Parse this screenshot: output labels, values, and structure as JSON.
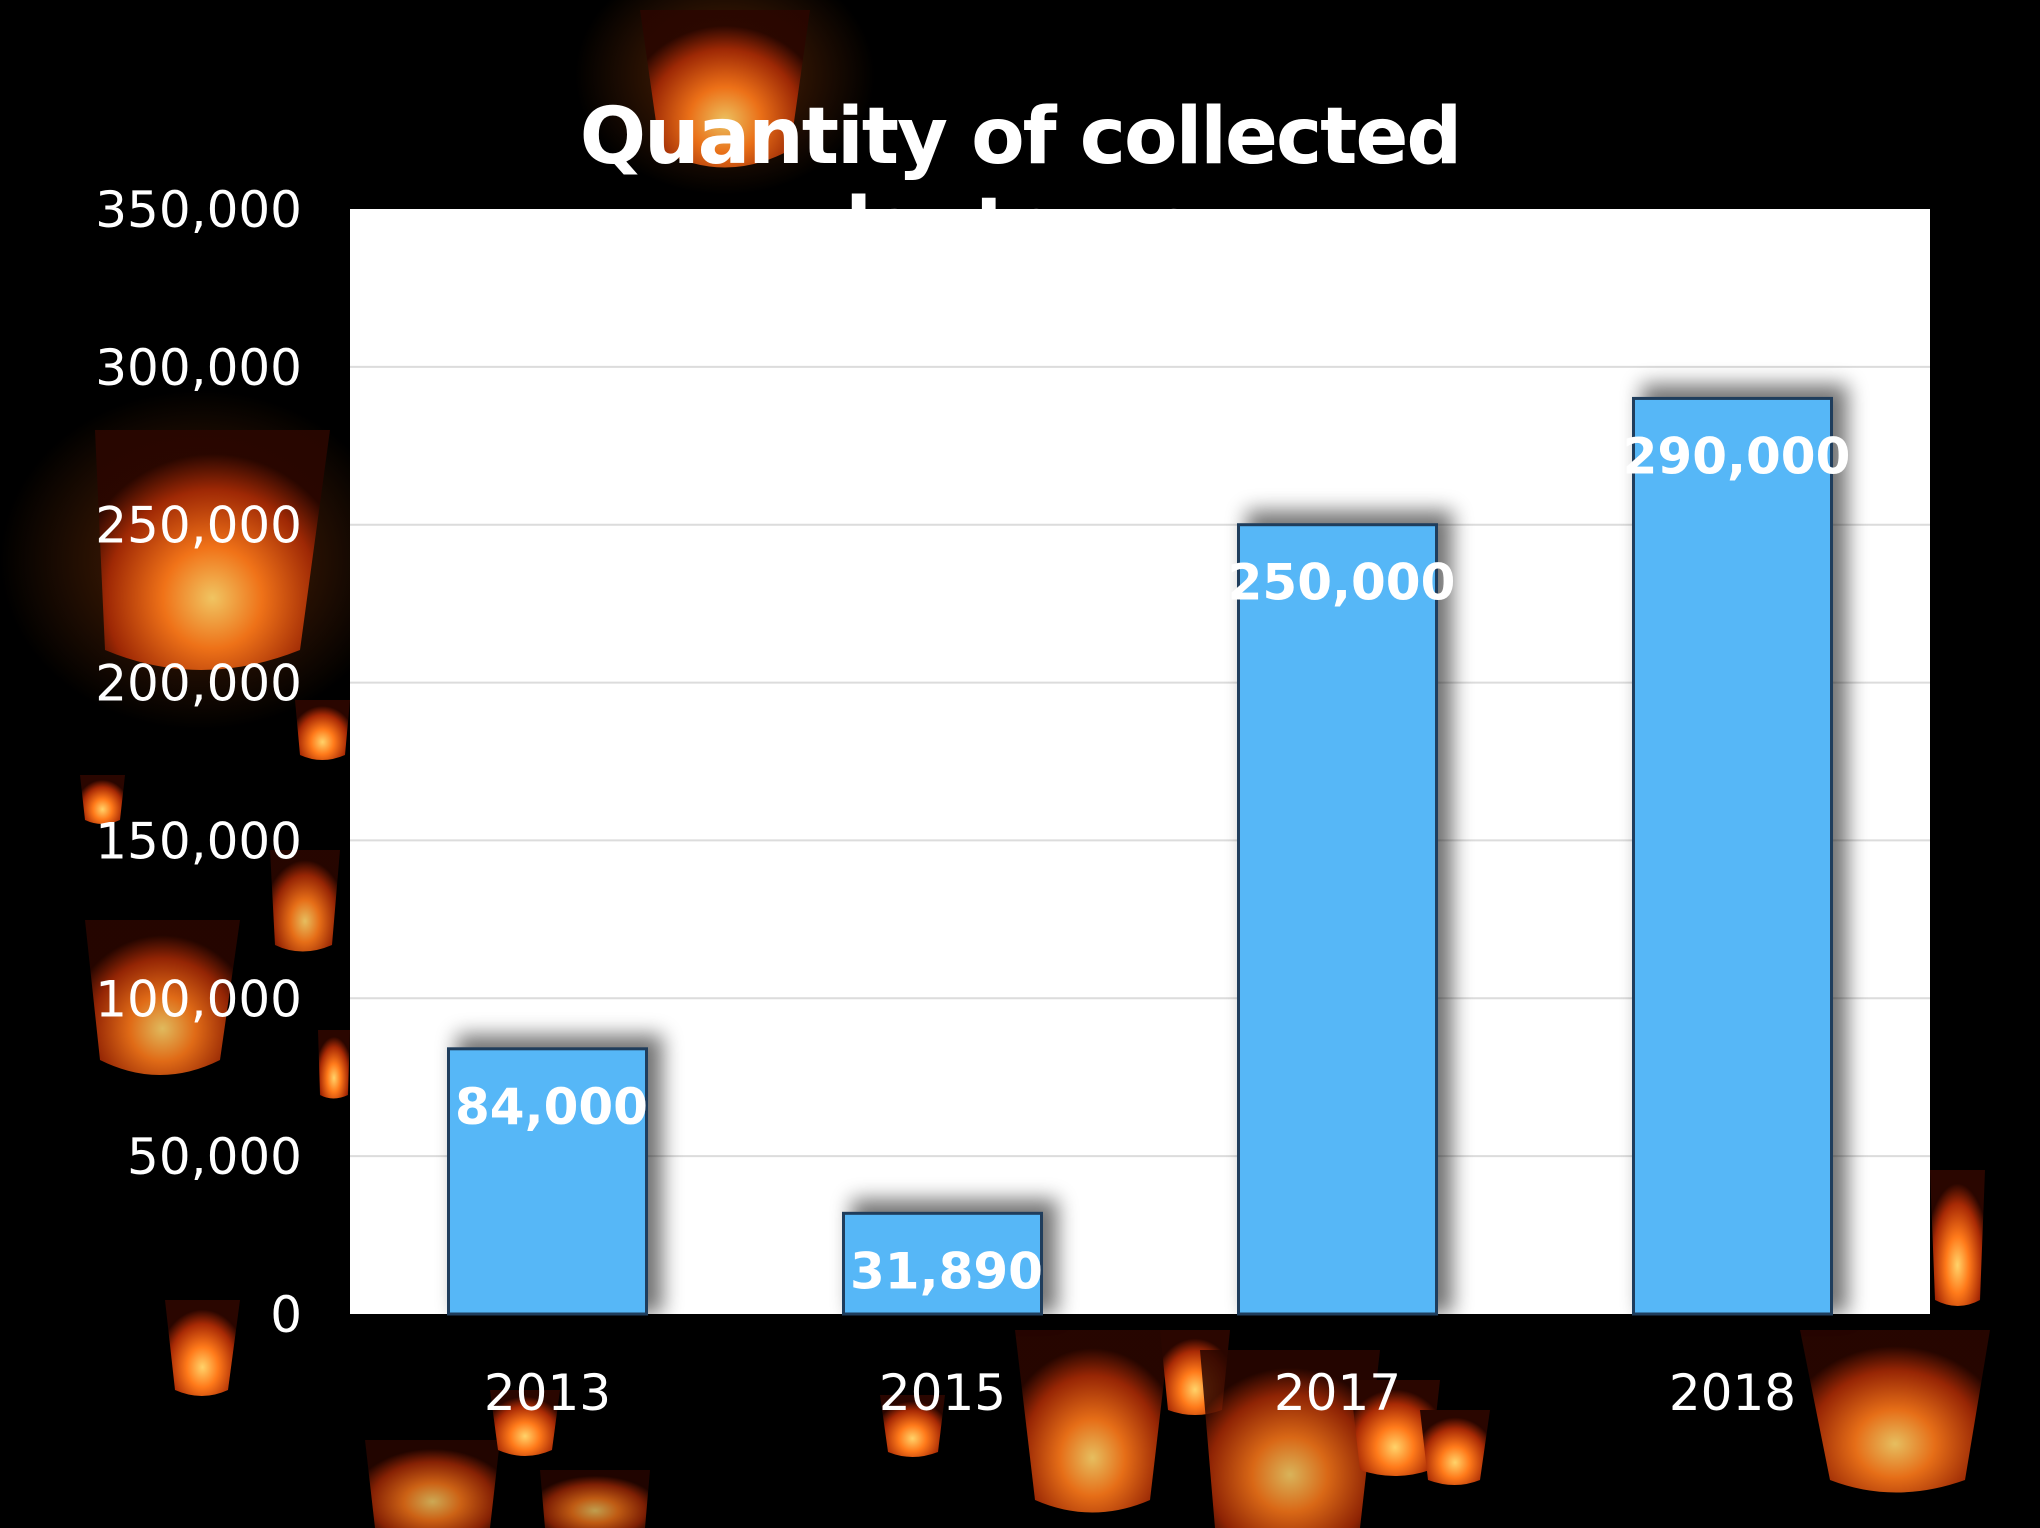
{
  "chart_data": {
    "type": "bar",
    "title": "Quantity of collected lanterns",
    "xlabel": "",
    "ylabel": "",
    "categories": [
      "2013",
      "2015",
      "2017",
      "2018"
    ],
    "values": [
      84000,
      31890,
      250000,
      290000
    ],
    "data_labels": [
      "84,000",
      "31,890",
      "250,000",
      "290,000"
    ],
    "ylim": [
      0,
      350000
    ],
    "yticks": [
      0,
      50000,
      100000,
      150000,
      200000,
      250000,
      300000,
      350000
    ],
    "ytick_labels": [
      "0",
      "50,000",
      "100,000",
      "150,000",
      "200,000",
      "250,000",
      "300,000",
      "350,000"
    ],
    "grid": true,
    "legend": "none",
    "bar_color": "#56b7f7",
    "plot_background": "#ffffff",
    "page_background": "#000000",
    "background_image": "floating-sky-lanterns-photo"
  }
}
